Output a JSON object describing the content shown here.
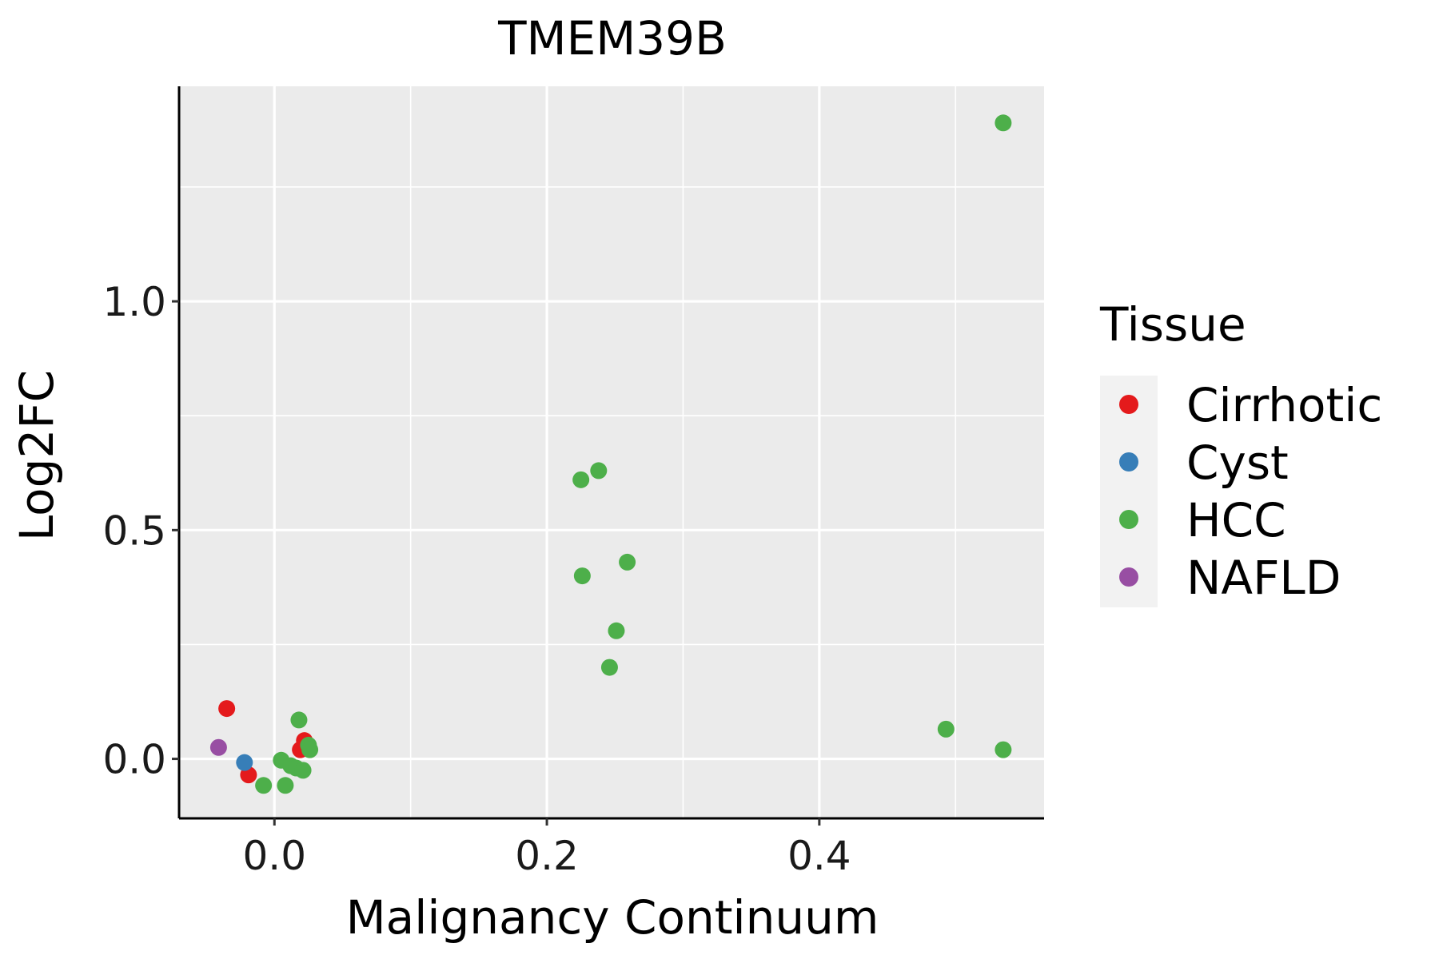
{
  "chart_data": {
    "type": "scatter",
    "title": "TMEM39B",
    "xlabel": "Malignancy Continuum",
    "ylabel": "Log2FC",
    "xlim": [
      -0.07,
      0.565
    ],
    "ylim": [
      -0.13,
      1.47
    ],
    "x_ticks": [
      0.0,
      0.2,
      0.4
    ],
    "x_tick_labels": [
      "0.0",
      "0.2",
      "0.4"
    ],
    "x_minor_ticks": [
      -0.1,
      0.1,
      0.3,
      0.5
    ],
    "y_ticks": [
      0.0,
      0.5,
      1.0
    ],
    "y_tick_labels": [
      "0.0",
      "0.5",
      "1.0"
    ],
    "y_minor_ticks": [
      0.25,
      0.75,
      1.25
    ],
    "grid": true,
    "legend": {
      "title": "Tissue",
      "position": "right",
      "entries": [
        {
          "label": "Cirrhotic",
          "color": "#e41a1c"
        },
        {
          "label": "Cyst",
          "color": "#377eb8"
        },
        {
          "label": "HCC",
          "color": "#4daf4a"
        },
        {
          "label": "NAFLD",
          "color": "#984ea3"
        }
      ]
    },
    "series": [
      {
        "name": "Cirrhotic",
        "color": "#e41a1c",
        "points": [
          {
            "x": -0.035,
            "y": 0.11
          },
          {
            "x": -0.019,
            "y": -0.035
          },
          {
            "x": 0.022,
            "y": 0.04
          },
          {
            "x": 0.019,
            "y": 0.02
          }
        ]
      },
      {
        "name": "Cyst",
        "color": "#377eb8",
        "points": [
          {
            "x": -0.022,
            "y": -0.008
          }
        ]
      },
      {
        "name": "HCC",
        "color": "#4daf4a",
        "points": [
          {
            "x": 0.535,
            "y": 1.39
          },
          {
            "x": 0.238,
            "y": 0.63
          },
          {
            "x": 0.225,
            "y": 0.61
          },
          {
            "x": 0.259,
            "y": 0.43
          },
          {
            "x": 0.226,
            "y": 0.4
          },
          {
            "x": 0.251,
            "y": 0.28
          },
          {
            "x": 0.246,
            "y": 0.2
          },
          {
            "x": 0.493,
            "y": 0.065
          },
          {
            "x": 0.535,
            "y": 0.02
          },
          {
            "x": 0.018,
            "y": 0.085
          },
          {
            "x": 0.025,
            "y": 0.03
          },
          {
            "x": 0.026,
            "y": 0.02
          },
          {
            "x": 0.005,
            "y": -0.003
          },
          {
            "x": 0.012,
            "y": -0.015
          },
          {
            "x": 0.016,
            "y": -0.02
          },
          {
            "x": 0.021,
            "y": -0.025
          },
          {
            "x": -0.008,
            "y": -0.058
          },
          {
            "x": 0.008,
            "y": -0.058
          }
        ]
      },
      {
        "name": "NAFLD",
        "color": "#984ea3",
        "points": [
          {
            "x": -0.041,
            "y": 0.025
          }
        ]
      }
    ]
  }
}
